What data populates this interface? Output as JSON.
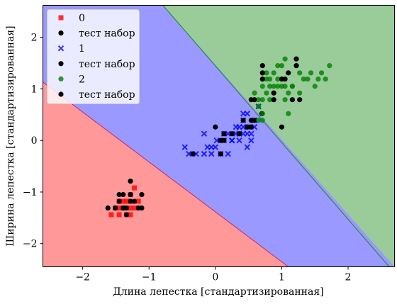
{
  "chart_data": {
    "type": "scatter",
    "title": "",
    "xlabel": "Длина лепестка [стандартизированная]",
    "ylabel": "Ширина лепестка [стандартизированная]",
    "xlim": [
      -2.6,
      2.7
    ],
    "ylim": [
      -2.45,
      2.62
    ],
    "xticks": [
      -2,
      -1,
      0,
      1,
      2
    ],
    "yticks": [
      -2,
      -1,
      0,
      1,
      2
    ],
    "grid": false,
    "legend_position": "top-left",
    "decision_boundaries": [
      {
        "name": "0|1",
        "x1": -2.6,
        "y1": 1.13,
        "x2": 1.1,
        "y2": -2.45
      },
      {
        "name": "1|2",
        "x1": -0.79,
        "y1": 2.62,
        "x2": 2.62,
        "y2": -2.45
      }
    ],
    "region_colors": {
      "class0": "#ff9999",
      "class1": "#9999ff",
      "class2": "#99cc99",
      "boundary0": "#cc2266",
      "boundary1": "#338844"
    },
    "series": [
      {
        "name": "0",
        "marker": "square",
        "color": "#ff0000",
        "points": [
          [
            -1.34,
            -1.31
          ],
          [
            -1.39,
            -1.31
          ],
          [
            -1.28,
            -1.31
          ],
          [
            -1.45,
            -1.31
          ],
          [
            -1.51,
            -1.31
          ],
          [
            -1.22,
            -1.31
          ],
          [
            -1.45,
            -1.18
          ],
          [
            -1.39,
            -1.18
          ],
          [
            -1.28,
            -1.18
          ],
          [
            -1.34,
            -1.44
          ],
          [
            -1.57,
            -1.44
          ],
          [
            -1.28,
            -1.05
          ],
          [
            -1.22,
            -0.92
          ],
          [
            -1.39,
            -1.31
          ],
          [
            -1.16,
            -1.18
          ],
          [
            -1.45,
            -1.44
          ],
          [
            -1.34,
            -1.18
          ],
          [
            -1.28,
            -1.44
          ]
        ]
      },
      {
        "name": "тест набор",
        "marker": "circle",
        "color": "#000000",
        "points": [
          [
            -1.34,
            -1.31
          ],
          [
            -1.28,
            -1.05
          ],
          [
            -1.45,
            -1.05
          ],
          [
            -1.39,
            -1.31
          ],
          [
            -1.11,
            -1.31
          ],
          [
            -1.34,
            -1.44
          ],
          [
            -1.28,
            -0.79
          ],
          [
            -1.16,
            -1.31
          ],
          [
            -1.62,
            -1.31
          ],
          [
            -1.22,
            -1.18
          ],
          [
            -1.51,
            -1.31
          ],
          [
            -1.11,
            -1.05
          ],
          [
            -1.39,
            -1.05
          ],
          [
            -1.28,
            -1.18
          ],
          [
            -1.45,
            -1.18
          ]
        ]
      },
      {
        "name": "1",
        "marker": "x",
        "color": "#0000ff",
        "points": [
          [
            0.31,
            0.13
          ],
          [
            0.42,
            0.39
          ],
          [
            0.48,
            0.26
          ],
          [
            0.54,
            0.13
          ],
          [
            0.59,
            0.26
          ],
          [
            0.31,
            0.26
          ],
          [
            0.25,
            0.0
          ],
          [
            0.36,
            0.26
          ],
          [
            0.42,
            0.13
          ],
          [
            0.48,
            0.13
          ],
          [
            0.65,
            0.66
          ],
          [
            0.13,
            0.0
          ],
          [
            0.08,
            -0.26
          ],
          [
            -0.06,
            -0.26
          ],
          [
            -0.17,
            -0.26
          ],
          [
            -0.29,
            -0.26
          ],
          [
            -0.12,
            -0.13
          ],
          [
            0.19,
            0.13
          ],
          [
            -0.4,
            -0.26
          ],
          [
            -0.46,
            -0.13
          ],
          [
            0.02,
            0.0
          ],
          [
            0.36,
            0.13
          ],
          [
            0.48,
            0.52
          ],
          [
            0.59,
            0.39
          ],
          [
            0.42,
            0.52
          ],
          [
            0.19,
            -0.26
          ],
          [
            -0.06,
            -0.13
          ],
          [
            0.13,
            0.13
          ],
          [
            -0.17,
            0.13
          ],
          [
            0.54,
            0.0
          ],
          [
            0.48,
            -0.13
          ],
          [
            0.25,
            0.0
          ],
          [
            0.36,
            0.0
          ],
          [
            0.0,
            -0.13
          ],
          [
            0.42,
            0.26
          ]
        ]
      },
      {
        "name": "тест набор",
        "marker": "circle",
        "color": "#000000",
        "points": [
          [
            0.0,
            0.26
          ],
          [
            0.42,
            0.39
          ],
          [
            0.48,
            0.26
          ],
          [
            0.54,
            0.26
          ],
          [
            0.59,
            0.39
          ],
          [
            0.36,
            0.13
          ],
          [
            0.25,
            0.13
          ],
          [
            0.13,
            0.13
          ],
          [
            0.08,
            0.0
          ],
          [
            0.48,
            0.26
          ],
          [
            0.7,
            0.52
          ],
          [
            -0.34,
            -0.26
          ],
          [
            0.13,
            0.0
          ],
          [
            0.08,
            -0.26
          ],
          [
            0.54,
            0.39
          ]
        ]
      },
      {
        "name": "2",
        "marker": "circle",
        "color": "#008000",
        "points": [
          [
            1.0,
            1.45
          ],
          [
            1.05,
            1.58
          ],
          [
            1.22,
            1.58
          ],
          [
            1.27,
            1.31
          ],
          [
            1.33,
            1.19
          ],
          [
            1.39,
            1.19
          ],
          [
            1.44,
            1.31
          ],
          [
            1.5,
            1.05
          ],
          [
            1.55,
            1.19
          ],
          [
            1.6,
            1.31
          ],
          [
            1.66,
            1.19
          ],
          [
            1.72,
            1.45
          ],
          [
            1.16,
            1.05
          ],
          [
            1.1,
            0.92
          ],
          [
            1.05,
            1.05
          ],
          [
            0.94,
            1.05
          ],
          [
            0.88,
            0.79
          ],
          [
            0.82,
            1.19
          ],
          [
            0.77,
            1.31
          ],
          [
            0.71,
            1.05
          ],
          [
            0.65,
            0.79
          ],
          [
            0.59,
            0.92
          ],
          [
            0.65,
            0.66
          ],
          [
            0.71,
            0.52
          ],
          [
            0.77,
            0.92
          ],
          [
            0.82,
            1.05
          ],
          [
            0.88,
            1.31
          ],
          [
            0.94,
            1.19
          ],
          [
            1.0,
            1.05
          ],
          [
            1.05,
            0.79
          ],
          [
            1.1,
            0.52
          ],
          [
            0.94,
            1.45
          ],
          [
            1.16,
            1.05
          ],
          [
            1.27,
            0.92
          ],
          [
            0.71,
            0.79
          ],
          [
            0.65,
            0.39
          ],
          [
            0.71,
            0.39
          ],
          [
            0.77,
            1.19
          ],
          [
            0.82,
            0.79
          ],
          [
            0.88,
            1.05
          ]
        ]
      },
      {
        "name": "тест набор",
        "marker": "circle",
        "color": "#000000",
        "points": [
          [
            0.71,
            1.45
          ],
          [
            0.71,
            1.31
          ],
          [
            1.22,
            1.45
          ],
          [
            1.0,
            1.19
          ],
          [
            1.05,
            1.19
          ],
          [
            1.16,
            0.79
          ],
          [
            1.27,
            0.79
          ],
          [
            0.88,
            0.79
          ],
          [
            0.71,
            1.19
          ],
          [
            0.59,
            0.79
          ],
          [
            0.54,
            0.79
          ],
          [
            1.0,
            0.26
          ],
          [
            1.1,
            1.31
          ],
          [
            1.22,
            1.58
          ],
          [
            0.88,
            0.92
          ]
        ]
      }
    ]
  }
}
